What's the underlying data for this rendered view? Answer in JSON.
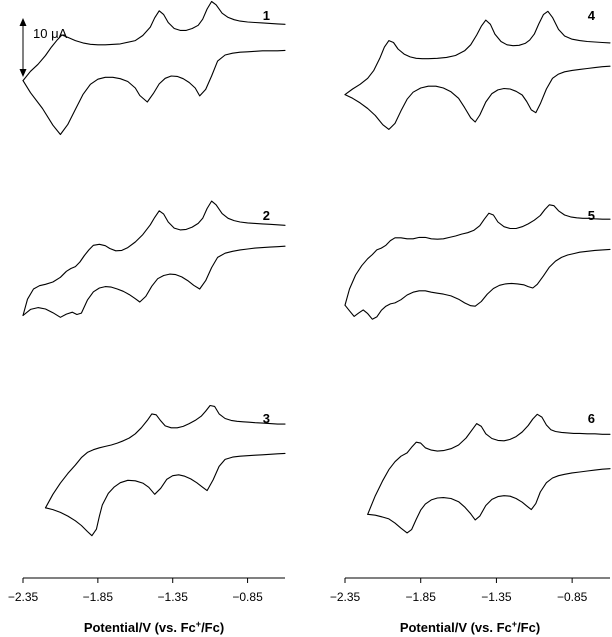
{
  "chart_data": {
    "type": "line",
    "title": "",
    "description_free": true,
    "xlabel": "Potential/V (vs. Fc⁺/Fc)",
    "xlabel_parts": {
      "prefix": "Potential/V (vs. Fc",
      "sup": "+",
      "suffix": "/Fc)"
    },
    "xlim": [
      -2.35,
      -0.6
    ],
    "xticks": [
      -2.35,
      -1.85,
      -1.35,
      -0.85
    ],
    "xtick_labels": [
      "−2.35",
      "−1.85",
      "−1.35",
      "−0.85"
    ],
    "x_reversed": false,
    "grid": false,
    "scale_bar": {
      "label": "10 μA",
      "current_uA": 10
    },
    "ylim": [
      -25,
      12
    ],
    "panels": [
      {
        "label": "1",
        "column": 0,
        "row": 0,
        "forward_x": [
          -2.35,
          -2.3,
          -2.22,
          -2.15,
          -2.1,
          -2.05,
          -2.0,
          -1.95,
          -1.9,
          -1.85,
          -1.8,
          -1.75,
          -1.7,
          -1.65,
          -1.6,
          -1.57,
          -1.52,
          -1.48,
          -1.44,
          -1.4,
          -1.36,
          -1.32,
          -1.28,
          -1.24,
          -1.2,
          -1.17,
          -1.13,
          -1.09,
          -1.05,
          -1.0,
          -0.95,
          -0.9,
          -0.85,
          -0.8,
          -0.75,
          -0.7,
          -0.65,
          -0.6
        ],
        "forward_y": [
          -4.0,
          -6.6,
          -10.0,
          -13.6,
          -15.6,
          -13.4,
          -10.2,
          -7.0,
          -4.8,
          -3.7,
          -3.3,
          -3.3,
          -3.6,
          -4.2,
          -5.6,
          -7.2,
          -8.6,
          -6.8,
          -4.7,
          -3.5,
          -3.0,
          -3.1,
          -3.6,
          -4.4,
          -5.6,
          -7.3,
          -5.9,
          -3.0,
          0.2,
          1.5,
          1.9,
          2.1,
          2.2,
          2.3,
          2.4,
          2.4,
          2.4,
          2.5
        ],
        "reverse_x": [
          -2.35,
          -2.3,
          -2.25,
          -2.2,
          -2.16,
          -2.12,
          -2.09,
          -2.05,
          -2.0,
          -1.95,
          -1.9,
          -1.85,
          -1.8,
          -1.7,
          -1.6,
          -1.55,
          -1.5,
          -1.47,
          -1.44,
          -1.41,
          -1.38,
          -1.34,
          -1.3,
          -1.26,
          -1.22,
          -1.18,
          -1.15,
          -1.12,
          -1.09,
          -1.06,
          -1.02,
          -0.98,
          -0.94,
          -0.9,
          -0.85,
          -0.8,
          -0.75,
          -0.7,
          -0.65,
          -0.6
        ],
        "reverse_y": [
          -4.0,
          -2.0,
          -0.5,
          1.4,
          3.2,
          4.8,
          5.8,
          5.3,
          4.6,
          4.1,
          3.8,
          3.7,
          3.7,
          3.9,
          4.6,
          5.7,
          7.5,
          9.5,
          11.0,
          10.2,
          8.5,
          7.2,
          6.8,
          6.8,
          7.2,
          7.9,
          9.2,
          11.4,
          13.0,
          12.3,
          10.5,
          9.6,
          9.1,
          8.8,
          8.6,
          8.5,
          8.4,
          8.3,
          8.2,
          8.1
        ]
      },
      {
        "label": "2",
        "column": 0,
        "row": 1,
        "forward_x": [
          -2.35,
          -2.3,
          -2.25,
          -2.2,
          -2.15,
          -2.1,
          -2.06,
          -2.02,
          -1.99,
          -1.96,
          -1.92,
          -1.88,
          -1.84,
          -1.8,
          -1.76,
          -1.72,
          -1.68,
          -1.64,
          -1.6,
          -1.57,
          -1.53,
          -1.49,
          -1.45,
          -1.41,
          -1.37,
          -1.33,
          -1.29,
          -1.25,
          -1.21,
          -1.17,
          -1.13,
          -1.09,
          -1.05,
          -1.0,
          -0.95,
          -0.9,
          -0.85,
          -0.8,
          -0.75,
          -0.7,
          -0.65,
          -0.6
        ],
        "forward_y": [
          -11.5,
          -10.2,
          -9.8,
          -10.1,
          -10.9,
          -11.9,
          -11.2,
          -10.8,
          -11.3,
          -11.0,
          -8.2,
          -6.4,
          -5.6,
          -5.3,
          -5.4,
          -5.8,
          -6.3,
          -7.0,
          -7.9,
          -8.6,
          -7.4,
          -5.2,
          -3.6,
          -2.9,
          -2.6,
          -2.7,
          -3.2,
          -4.0,
          -5.0,
          -5.8,
          -4.0,
          -1.2,
          1.0,
          1.9,
          2.3,
          2.6,
          2.8,
          3.0,
          3.1,
          3.2,
          3.3,
          3.4
        ],
        "reverse_x": [
          -2.35,
          -2.32,
          -2.28,
          -2.24,
          -2.2,
          -2.15,
          -2.1,
          -2.06,
          -2.03,
          -2.0,
          -1.97,
          -1.94,
          -1.91,
          -1.88,
          -1.84,
          -1.8,
          -1.77,
          -1.73,
          -1.69,
          -1.65,
          -1.6,
          -1.55,
          -1.5,
          -1.47,
          -1.44,
          -1.41,
          -1.38,
          -1.34,
          -1.3,
          -1.26,
          -1.22,
          -1.18,
          -1.15,
          -1.12,
          -1.09,
          -1.06,
          -1.02,
          -0.98,
          -0.94,
          -0.9,
          -0.85,
          -0.8,
          -0.75,
          -0.7,
          -0.65,
          -0.6
        ],
        "reverse_y": [
          -11.5,
          -8.0,
          -5.8,
          -5.1,
          -4.8,
          -4.3,
          -3.3,
          -2.0,
          -1.4,
          -1.0,
          0.0,
          1.4,
          2.6,
          3.6,
          3.8,
          3.5,
          2.9,
          2.4,
          2.5,
          3.1,
          4.3,
          5.9,
          8.0,
          9.6,
          11.0,
          10.3,
          8.6,
          7.3,
          6.9,
          7.0,
          7.5,
          8.3,
          9.4,
          11.5,
          13.1,
          12.3,
          10.4,
          9.4,
          8.9,
          8.6,
          8.4,
          8.3,
          8.2,
          8.1,
          8.0,
          7.9
        ]
      },
      {
        "label": "3",
        "column": 0,
        "row": 2,
        "forward_x": [
          -2.2,
          -2.15,
          -2.1,
          -2.05,
          -2.0,
          -1.96,
          -1.92,
          -1.89,
          -1.86,
          -1.84,
          -1.82,
          -1.78,
          -1.74,
          -1.7,
          -1.65,
          -1.6,
          -1.55,
          -1.51,
          -1.47,
          -1.43,
          -1.39,
          -1.35,
          -1.31,
          -1.27,
          -1.23,
          -1.19,
          -1.15,
          -1.12,
          -1.08,
          -1.04,
          -1.0,
          -0.95,
          -0.9,
          -0.85,
          -0.8,
          -0.75,
          -0.7,
          -0.65,
          -0.6
        ],
        "forward_y": [
          -9.2,
          -9.6,
          -10.2,
          -11.0,
          -12.0,
          -13.0,
          -14.3,
          -15.2,
          -13.8,
          -11.0,
          -8.6,
          -6.1,
          -4.7,
          -3.8,
          -3.3,
          -3.4,
          -3.9,
          -4.8,
          -6.3,
          -5.0,
          -3.1,
          -2.3,
          -2.1,
          -2.4,
          -3.0,
          -3.8,
          -4.8,
          -5.5,
          -3.2,
          -0.3,
          1.2,
          1.7,
          1.9,
          2.0,
          2.1,
          2.2,
          2.3,
          2.4,
          2.5
        ],
        "reverse_x": [
          -2.2,
          -2.15,
          -2.1,
          -2.05,
          -2.0,
          -1.96,
          -1.92,
          -1.88,
          -1.84,
          -1.8,
          -1.76,
          -1.72,
          -1.68,
          -1.64,
          -1.6,
          -1.56,
          -1.52,
          -1.49,
          -1.46,
          -1.43,
          -1.4,
          -1.36,
          -1.32,
          -1.28,
          -1.24,
          -1.2,
          -1.16,
          -1.13,
          -1.1,
          -1.07,
          -1.04,
          -1.0,
          -0.96,
          -0.92,
          -0.88,
          -0.84,
          -0.8,
          -0.75,
          -0.7,
          -0.65,
          -0.6
        ],
        "reverse_y": [
          -9.2,
          -6.3,
          -3.9,
          -1.8,
          0.0,
          1.6,
          2.7,
          3.3,
          3.7,
          4.0,
          4.3,
          4.7,
          5.2,
          5.8,
          6.7,
          8.0,
          9.6,
          11.0,
          10.8,
          9.5,
          8.4,
          8.0,
          8.0,
          8.3,
          8.9,
          9.6,
          10.5,
          11.6,
          12.8,
          12.6,
          11.0,
          10.0,
          9.6,
          9.4,
          9.3,
          9.2,
          9.1,
          9.0,
          8.9,
          8.8,
          8.8
        ]
      },
      {
        "label": "4",
        "column": 1,
        "row": 0,
        "forward_x": [
          -2.35,
          -2.3,
          -2.25,
          -2.2,
          -2.15,
          -2.1,
          -2.06,
          -2.02,
          -1.98,
          -1.94,
          -1.9,
          -1.85,
          -1.8,
          -1.75,
          -1.7,
          -1.65,
          -1.6,
          -1.56,
          -1.52,
          -1.49,
          -1.46,
          -1.42,
          -1.38,
          -1.34,
          -1.3,
          -1.26,
          -1.22,
          -1.18,
          -1.15,
          -1.12,
          -1.09,
          -1.06,
          -1.02,
          -0.98,
          -0.94,
          -0.9,
          -0.85,
          -0.8,
          -0.75,
          -0.7,
          -0.65,
          -0.6
        ],
        "forward_y": [
          -7.0,
          -7.8,
          -8.8,
          -10.0,
          -11.5,
          -13.5,
          -14.5,
          -13.2,
          -10.5,
          -8.0,
          -6.5,
          -5.6,
          -5.2,
          -5.2,
          -5.6,
          -6.4,
          -7.8,
          -9.8,
          -12.0,
          -12.9,
          -11.4,
          -8.6,
          -6.8,
          -6.0,
          -5.7,
          -5.8,
          -6.3,
          -7.1,
          -8.5,
          -10.3,
          -10.9,
          -9.0,
          -5.8,
          -3.5,
          -2.6,
          -2.1,
          -1.8,
          -1.6,
          -1.4,
          -1.2,
          -1.0,
          -0.9
        ],
        "reverse_x": [
          -2.35,
          -2.3,
          -2.25,
          -2.2,
          -2.16,
          -2.12,
          -2.09,
          -2.06,
          -2.03,
          -2.0,
          -1.96,
          -1.92,
          -1.88,
          -1.84,
          -1.8,
          -1.74,
          -1.68,
          -1.62,
          -1.56,
          -1.52,
          -1.48,
          -1.45,
          -1.42,
          -1.39,
          -1.36,
          -1.32,
          -1.28,
          -1.24,
          -1.2,
          -1.16,
          -1.13,
          -1.1,
          -1.07,
          -1.04,
          -1.01,
          -0.98,
          -0.94,
          -0.9,
          -0.85,
          -0.8,
          -0.75,
          -0.7,
          -0.65,
          -0.6
        ],
        "reverse_y": [
          -7.0,
          -5.8,
          -4.8,
          -3.5,
          -1.8,
          0.8,
          3.2,
          4.6,
          4.2,
          2.8,
          1.7,
          1.1,
          0.8,
          0.7,
          0.7,
          0.8,
          1.0,
          1.4,
          2.4,
          3.7,
          5.8,
          7.7,
          9.0,
          8.1,
          6.0,
          4.4,
          3.7,
          3.5,
          3.6,
          4.0,
          4.7,
          6.0,
          8.2,
          10.2,
          10.9,
          9.6,
          7.0,
          5.6,
          4.9,
          4.6,
          4.4,
          4.3,
          4.2,
          4.1
        ]
      },
      {
        "label": "5",
        "column": 1,
        "row": 1,
        "forward_x": [
          -2.35,
          -2.32,
          -2.29,
          -2.26,
          -2.23,
          -2.2,
          -2.17,
          -2.14,
          -2.11,
          -2.08,
          -2.05,
          -2.02,
          -1.98,
          -1.94,
          -1.9,
          -1.86,
          -1.82,
          -1.78,
          -1.74,
          -1.7,
          -1.65,
          -1.6,
          -1.56,
          -1.52,
          -1.49,
          -1.45,
          -1.41,
          -1.37,
          -1.33,
          -1.29,
          -1.25,
          -1.21,
          -1.17,
          -1.14,
          -1.11,
          -1.08,
          -1.04,
          -1.0,
          -0.96,
          -0.92,
          -0.88,
          -0.84,
          -0.8,
          -0.75,
          -0.7,
          -0.65,
          -0.6
        ],
        "forward_y": [
          -9.3,
          -10.5,
          -11.7,
          -11.0,
          -10.3,
          -11.1,
          -12.3,
          -11.8,
          -10.4,
          -9.5,
          -9.0,
          -8.8,
          -8.1,
          -7.1,
          -6.5,
          -6.2,
          -6.2,
          -6.5,
          -6.7,
          -6.9,
          -7.3,
          -8.0,
          -8.8,
          -9.4,
          -9.5,
          -8.5,
          -6.9,
          -5.7,
          -5.0,
          -4.7,
          -4.6,
          -4.7,
          -4.9,
          -5.3,
          -5.6,
          -4.8,
          -3.0,
          -1.1,
          0.2,
          1.0,
          1.5,
          1.8,
          2.1,
          2.3,
          2.5,
          2.6,
          2.7
        ],
        "reverse_x": [
          -2.35,
          -2.32,
          -2.28,
          -2.24,
          -2.2,
          -2.17,
          -2.14,
          -2.11,
          -2.08,
          -2.05,
          -2.02,
          -1.98,
          -1.94,
          -1.9,
          -1.86,
          -1.82,
          -1.78,
          -1.74,
          -1.7,
          -1.66,
          -1.62,
          -1.58,
          -1.54,
          -1.5,
          -1.46,
          -1.43,
          -1.4,
          -1.37,
          -1.34,
          -1.3,
          -1.26,
          -1.22,
          -1.18,
          -1.14,
          -1.1,
          -1.06,
          -1.03,
          -1.0,
          -0.97,
          -0.94,
          -0.9,
          -0.86,
          -0.82,
          -0.78,
          -0.74,
          -0.7,
          -0.65,
          -0.6
        ],
        "reverse_y": [
          -9.3,
          -5.8,
          -2.8,
          -0.8,
          0.7,
          1.6,
          2.6,
          3.0,
          3.6,
          4.6,
          5.2,
          5.2,
          5.0,
          5.0,
          5.3,
          5.3,
          5.0,
          4.9,
          5.0,
          5.3,
          5.6,
          6.0,
          6.3,
          6.8,
          7.8,
          9.2,
          10.5,
          10.1,
          8.6,
          7.6,
          7.2,
          7.2,
          7.6,
          8.2,
          9.0,
          10.0,
          11.3,
          12.3,
          12.1,
          11.0,
          10.1,
          9.7,
          9.5,
          9.4,
          9.4,
          9.3,
          9.2,
          9.2
        ]
      },
      {
        "label": "6",
        "column": 1,
        "row": 2,
        "forward_x": [
          -2.2,
          -2.15,
          -2.1,
          -2.06,
          -2.02,
          -1.98,
          -1.94,
          -1.91,
          -1.88,
          -1.85,
          -1.82,
          -1.78,
          -1.74,
          -1.7,
          -1.65,
          -1.6,
          -1.56,
          -1.52,
          -1.49,
          -1.46,
          -1.42,
          -1.38,
          -1.34,
          -1.3,
          -1.26,
          -1.22,
          -1.18,
          -1.15,
          -1.12,
          -1.09,
          -1.06,
          -1.02,
          -0.98,
          -0.94,
          -0.9,
          -0.85,
          -0.8,
          -0.75,
          -0.7,
          -0.65,
          -0.6
        ],
        "forward_y": [
          -10.6,
          -10.8,
          -11.2,
          -11.6,
          -12.5,
          -13.6,
          -14.6,
          -13.9,
          -11.7,
          -9.7,
          -8.4,
          -7.5,
          -7.1,
          -7.0,
          -7.2,
          -7.9,
          -9.0,
          -10.5,
          -11.8,
          -11.0,
          -8.7,
          -7.4,
          -6.8,
          -6.6,
          -6.7,
          -7.2,
          -8.0,
          -8.8,
          -9.6,
          -8.3,
          -5.8,
          -3.8,
          -2.8,
          -2.3,
          -2.0,
          -1.7,
          -1.5,
          -1.3,
          -1.1,
          -0.9,
          -0.8
        ],
        "reverse_x": [
          -2.2,
          -2.15,
          -2.1,
          -2.06,
          -2.02,
          -1.98,
          -1.94,
          -1.91,
          -1.88,
          -1.85,
          -1.82,
          -1.78,
          -1.74,
          -1.7,
          -1.65,
          -1.6,
          -1.55,
          -1.51,
          -1.48,
          -1.45,
          -1.42,
          -1.38,
          -1.34,
          -1.3,
          -1.26,
          -1.22,
          -1.18,
          -1.14,
          -1.11,
          -1.08,
          -1.05,
          -1.02,
          -0.99,
          -0.96,
          -0.92,
          -0.88,
          -0.84,
          -0.8,
          -0.75,
          -0.7,
          -0.65,
          -0.6
        ],
        "reverse_y": [
          -10.6,
          -6.6,
          -3.3,
          -1.0,
          0.7,
          1.9,
          2.6,
          3.8,
          4.9,
          4.7,
          3.7,
          3.2,
          3.0,
          3.1,
          3.5,
          4.3,
          5.8,
          7.6,
          8.9,
          8.3,
          6.7,
          5.7,
          5.3,
          5.2,
          5.5,
          6.1,
          7.1,
          8.5,
          9.9,
          10.9,
          10.3,
          8.6,
          7.6,
          7.2,
          7.0,
          6.9,
          6.8,
          6.8,
          6.7,
          6.7,
          6.6,
          6.6
        ]
      }
    ]
  }
}
